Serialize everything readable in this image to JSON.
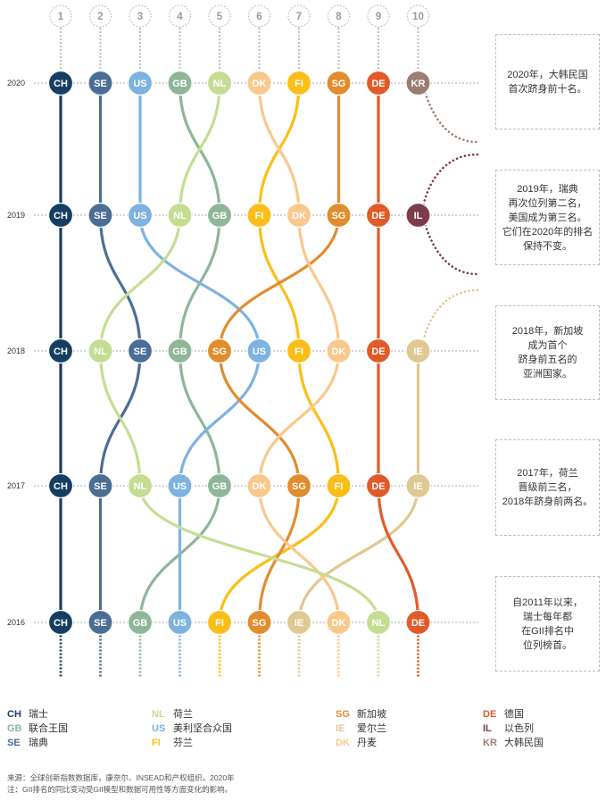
{
  "chart_data": {
    "type": "line",
    "x": [
      "2016",
      "2017",
      "2018",
      "2019",
      "2020"
    ],
    "rank_ticks": [
      1,
      2,
      3,
      4,
      5,
      6,
      7,
      8,
      9,
      10
    ],
    "grid": true,
    "legend_placement": "bottom",
    "series": [
      {
        "name": "CH",
        "color": "#163e63",
        "values": [
          1,
          1,
          1,
          1,
          1
        ]
      },
      {
        "name": "SE",
        "color": "#4a6e96",
        "values": [
          2,
          2,
          3,
          2,
          2
        ]
      },
      {
        "name": "GB",
        "color": "#8eb698",
        "values": [
          3,
          5,
          4,
          5,
          4
        ]
      },
      {
        "name": "US",
        "color": "#7db2e1",
        "values": [
          4,
          4,
          6,
          3,
          3
        ]
      },
      {
        "name": "FI",
        "color": "#fbbe19",
        "values": [
          5,
          8,
          7,
          6,
          7
        ]
      },
      {
        "name": "SG",
        "color": "#e18c2d",
        "values": [
          6,
          7,
          5,
          8,
          8
        ]
      },
      {
        "name": "IE",
        "color": "#dfc891",
        "values": [
          7,
          10,
          10,
          null,
          null
        ]
      },
      {
        "name": "DK",
        "color": "#fac88c",
        "values": [
          8,
          6,
          8,
          7,
          6
        ]
      },
      {
        "name": "NL",
        "color": "#c4dd93",
        "values": [
          9,
          3,
          2,
          4,
          5
        ]
      },
      {
        "name": "DE",
        "color": "#e15a28",
        "values": [
          10,
          9,
          9,
          9,
          9
        ]
      },
      {
        "name": "IL",
        "color": "#7d3c4b",
        "values": [
          null,
          null,
          null,
          10,
          null
        ]
      },
      {
        "name": "KR",
        "color": "#9c7d71",
        "values": [
          null,
          null,
          null,
          null,
          10
        ]
      }
    ]
  },
  "annotations": [
    {
      "lines": [
        "2020年，大韩民国",
        "首次跻身前十名。"
      ]
    },
    {
      "lines": [
        "2019年，瑞典",
        "再次位列第二名，",
        "美国成为第三名。",
        "它们在2020年的排名",
        "保持不变。"
      ]
    },
    {
      "lines": [
        "2018年，新加坡",
        "成为首个",
        "跻身前五名的",
        "亚洲国家。"
      ]
    },
    {
      "lines": [
        "2017年，荷兰",
        "晋级前三名，",
        "2018年跻身前两名。"
      ]
    },
    {
      "lines": [
        "自2011年以来，",
        "瑞士每年都",
        "在GII排名中",
        "位列榜首。"
      ]
    }
  ],
  "legend": {
    "columns": [
      [
        {
          "code": "CH",
          "label": "瑞士"
        },
        {
          "code": "GB",
          "label": "联合王国"
        },
        {
          "code": "SE",
          "label": "瑞典"
        }
      ],
      [
        {
          "code": "NL",
          "label": "荷兰"
        },
        {
          "code": "US",
          "label": "美利坚合众国"
        },
        {
          "code": "FI",
          "label": "芬兰"
        }
      ],
      [
        {
          "code": "SG",
          "label": "新加坡"
        },
        {
          "code": "IE",
          "label": "爱尔兰"
        },
        {
          "code": "DK",
          "label": "丹麦"
        }
      ],
      [
        {
          "code": "DE",
          "label": "德国"
        },
        {
          "code": "IL",
          "label": "以色列"
        },
        {
          "code": "KR",
          "label": "大韩民国"
        }
      ]
    ]
  },
  "source": [
    "来源：全球创新指数数据库，康奈尔、INSEAD和产权组织，2020年",
    "注：GII排名的同比变动受GII模型和数据可用性等方面变化的影响。"
  ]
}
